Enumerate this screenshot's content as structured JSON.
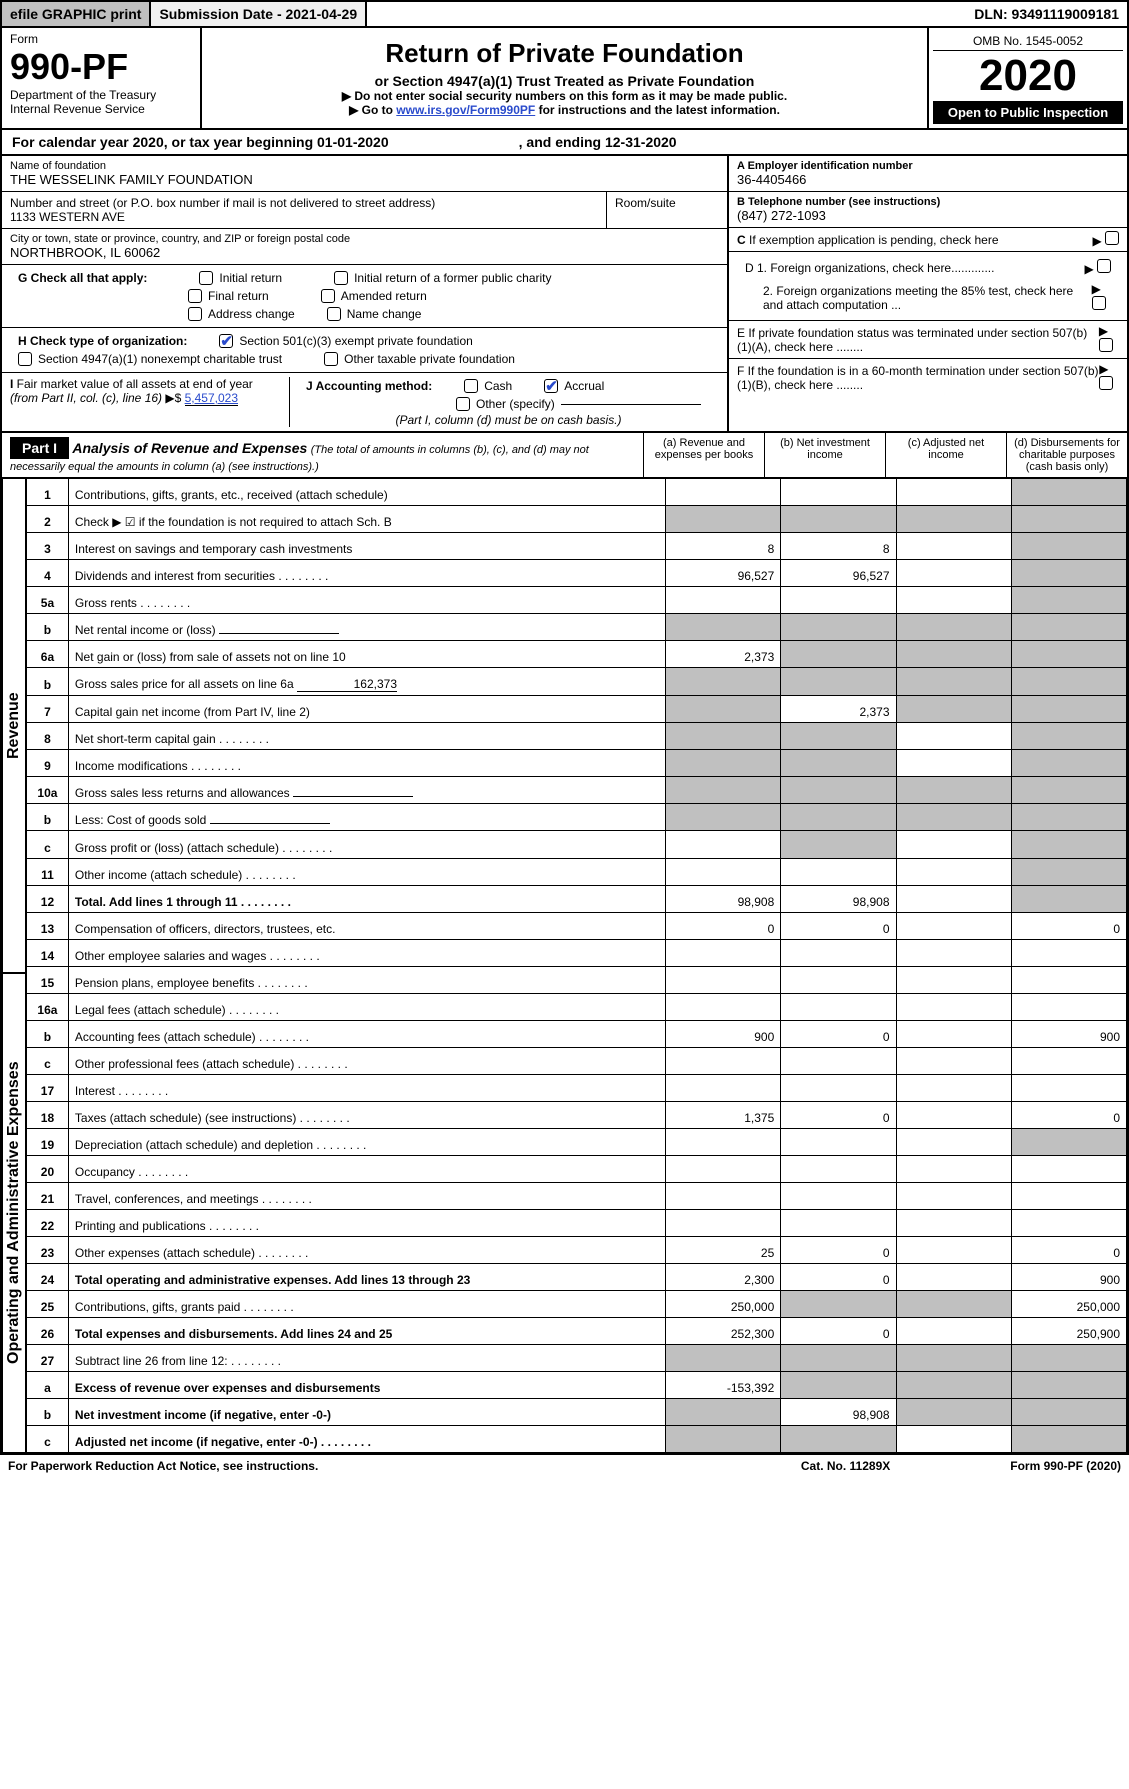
{
  "topbar": {
    "efile": "efile GRAPHIC print",
    "subdate": "Submission Date - 2021-04-29",
    "dln": "DLN: 93491119009181"
  },
  "header": {
    "form_label": "Form",
    "form_no": "990-PF",
    "dept": "Department of the Treasury",
    "irs": "Internal Revenue Service",
    "title": "Return of Private Foundation",
    "subtitle": "or Section 4947(a)(1) Trust Treated as Private Foundation",
    "note1": "▶ Do not enter social security numbers on this form as it may be made public.",
    "note2": "▶ Go to ",
    "link": "www.irs.gov/Form990PF",
    "note3": " for instructions and the latest information.",
    "omb": "OMB No. 1545-0052",
    "year": "2020",
    "open": "Open to Public Inspection"
  },
  "cy": {
    "text": "For calendar year 2020, or tax year beginning 01-01-2020",
    "ending": ", and ending 12-31-2020"
  },
  "info": {
    "name_lbl": "Name of foundation",
    "name": "THE WESSELINK FAMILY FOUNDATION",
    "addr_lbl": "Number and street (or P.O. box number if mail is not delivered to street address)",
    "addr": "1133 WESTERN AVE",
    "room_lbl": "Room/suite",
    "city_lbl": "City or town, state or province, country, and ZIP or foreign postal code",
    "city": "NORTHBROOK, IL  60062",
    "ein_lbl": "A Employer identification number",
    "ein": "36-4405466",
    "tel_lbl": "B Telephone number (see instructions)",
    "tel": "(847) 272-1093",
    "c_lbl": "C If exemption application is pending, check here",
    "g_lbl": "G Check all that apply:",
    "g1": "Initial return",
    "g2": "Initial return of a former public charity",
    "g3": "Final return",
    "g4": "Amended return",
    "g5": "Address change",
    "g6": "Name change",
    "h_lbl": "H Check type of organization:",
    "h1": "Section 501(c)(3) exempt private foundation",
    "h2": "Section 4947(a)(1) nonexempt charitable trust",
    "h3": "Other taxable private foundation",
    "i_lbl": "I Fair market value of all assets at end of year (from Part II, col. (c), line 16) ▶$ ",
    "i_val": "5,457,023",
    "j_lbl": "J Accounting method:",
    "j1": "Cash",
    "j2": "Accrual",
    "j3": "Other (specify)",
    "j_note": "(Part I, column (d) must be on cash basis.)",
    "d1": "D 1. Foreign organizations, check here.............",
    "d2": "2. Foreign organizations meeting the 85% test, check here and attach computation ...",
    "e_lbl": "E  If private foundation status was terminated under section 507(b)(1)(A), check here ........",
    "f_lbl": "F  If the foundation is in a 60-month termination under section 507(b)(1)(B), check here ........"
  },
  "part1": {
    "title": "Part I",
    "heading": "Analysis of Revenue and Expenses",
    "note": " (The total of amounts in columns (b), (c), and (d) may not necessarily equal the amounts in column (a) (see instructions).)",
    "cols": {
      "a": "(a)   Revenue and expenses per books",
      "b": "(b)   Net investment income",
      "c": "(c)   Adjusted net income",
      "d": "(d)   Disbursements for charitable purposes (cash basis only)"
    },
    "vlabels": {
      "rev": "Revenue",
      "exp": "Operating and Administrative Expenses"
    },
    "rows": [
      {
        "ln": "1",
        "desc": "Contributions, gifts, grants, etc., received (attach schedule)",
        "a": "",
        "b": "",
        "c": "",
        "d": "",
        "dgray": true
      },
      {
        "ln": "2",
        "desc": "Check ▶ ☑ if the foundation is not required to attach Sch. B",
        "wide": true
      },
      {
        "ln": "3",
        "desc": "Interest on savings and temporary cash investments",
        "a": "8",
        "b": "8",
        "c": "",
        "d": "",
        "dgray": true
      },
      {
        "ln": "4",
        "desc": "Dividends and interest from securities",
        "a": "96,527",
        "b": "96,527",
        "c": "",
        "d": "",
        "dgray": true
      },
      {
        "ln": "5a",
        "desc": "Gross rents",
        "a": "",
        "b": "",
        "c": "",
        "d": "",
        "dgray": true
      },
      {
        "ln": "b",
        "desc": "Net rental income or (loss)",
        "wide": true,
        "hasblank": true
      },
      {
        "ln": "6a",
        "desc": "Net gain or (loss) from sale of assets not on line 10",
        "a": "2,373",
        "b": "",
        "c": "",
        "d": "",
        "bgray": true,
        "cgray": true,
        "dgray": true
      },
      {
        "ln": "b",
        "desc": "Gross sales price for all assets on line 6a",
        "wide": true,
        "blankval": "162,373"
      },
      {
        "ln": "7",
        "desc": "Capital gain net income (from Part IV, line 2)",
        "a": "",
        "b": "2,373",
        "c": "",
        "d": "",
        "agray": true,
        "cgray": true,
        "dgray": true
      },
      {
        "ln": "8",
        "desc": "Net short-term capital gain",
        "a": "",
        "b": "",
        "c": "",
        "d": "",
        "agray": true,
        "bgray": true,
        "dgray": true
      },
      {
        "ln": "9",
        "desc": "Income modifications",
        "a": "",
        "b": "",
        "c": "",
        "d": "",
        "agray": true,
        "bgray": true,
        "dgray": true
      },
      {
        "ln": "10a",
        "desc": "Gross sales less returns and allowances",
        "wide": true,
        "hasblank": true
      },
      {
        "ln": "b",
        "desc": "Less: Cost of goods sold",
        "wide": true,
        "hasblank": true
      },
      {
        "ln": "c",
        "desc": "Gross profit or (loss) (attach schedule)",
        "a": "",
        "b": "",
        "c": "",
        "d": "",
        "bgray": true,
        "dgray": true
      },
      {
        "ln": "11",
        "desc": "Other income (attach schedule)",
        "a": "",
        "b": "",
        "c": "",
        "d": "",
        "dgray": true
      },
      {
        "ln": "12",
        "desc": "Total. Add lines 1 through 11",
        "bold": true,
        "a": "98,908",
        "b": "98,908",
        "c": "",
        "d": "",
        "dgray": true
      },
      {
        "ln": "13",
        "desc": "Compensation of officers, directors, trustees, etc.",
        "a": "0",
        "b": "0",
        "c": "",
        "d": "0",
        "section": "exp"
      },
      {
        "ln": "14",
        "desc": "Other employee salaries and wages",
        "a": "",
        "b": "",
        "c": "",
        "d": ""
      },
      {
        "ln": "15",
        "desc": "Pension plans, employee benefits",
        "a": "",
        "b": "",
        "c": "",
        "d": ""
      },
      {
        "ln": "16a",
        "desc": "Legal fees (attach schedule)",
        "a": "",
        "b": "",
        "c": "",
        "d": ""
      },
      {
        "ln": "b",
        "desc": "Accounting fees (attach schedule)",
        "a": "900",
        "b": "0",
        "c": "",
        "d": "900"
      },
      {
        "ln": "c",
        "desc": "Other professional fees (attach schedule)",
        "a": "",
        "b": "",
        "c": "",
        "d": ""
      },
      {
        "ln": "17",
        "desc": "Interest",
        "a": "",
        "b": "",
        "c": "",
        "d": ""
      },
      {
        "ln": "18",
        "desc": "Taxes (attach schedule) (see instructions)",
        "a": "1,375",
        "b": "0",
        "c": "",
        "d": "0"
      },
      {
        "ln": "19",
        "desc": "Depreciation (attach schedule) and depletion",
        "a": "",
        "b": "",
        "c": "",
        "d": "",
        "dgray": true
      },
      {
        "ln": "20",
        "desc": "Occupancy",
        "a": "",
        "b": "",
        "c": "",
        "d": ""
      },
      {
        "ln": "21",
        "desc": "Travel, conferences, and meetings",
        "a": "",
        "b": "",
        "c": "",
        "d": ""
      },
      {
        "ln": "22",
        "desc": "Printing and publications",
        "a": "",
        "b": "",
        "c": "",
        "d": ""
      },
      {
        "ln": "23",
        "desc": "Other expenses (attach schedule)",
        "a": "25",
        "b": "0",
        "c": "",
        "d": "0"
      },
      {
        "ln": "24",
        "desc": "Total operating and administrative expenses. Add lines 13 through 23",
        "bold": true,
        "a": "2,300",
        "b": "0",
        "c": "",
        "d": "900"
      },
      {
        "ln": "25",
        "desc": "Contributions, gifts, grants paid",
        "a": "250,000",
        "b": "",
        "c": "",
        "d": "250,000",
        "bgray": true,
        "cgray": true
      },
      {
        "ln": "26",
        "desc": "Total expenses and disbursements. Add lines 24 and 25",
        "bold": true,
        "a": "252,300",
        "b": "0",
        "c": "",
        "d": "250,900"
      },
      {
        "ln": "27",
        "desc": "Subtract line 26 from line 12:",
        "a": "",
        "b": "",
        "c": "",
        "d": "",
        "agray": true,
        "bgray": true,
        "cgray": true,
        "dgray": true
      },
      {
        "ln": "a",
        "desc": "Excess of revenue over expenses and disbursements",
        "bold": true,
        "a": "-153,392",
        "b": "",
        "c": "",
        "d": "",
        "bgray": true,
        "cgray": true,
        "dgray": true
      },
      {
        "ln": "b",
        "desc": "Net investment income (if negative, enter -0-)",
        "bold": true,
        "a": "",
        "b": "98,908",
        "c": "",
        "d": "",
        "agray": true,
        "cgray": true,
        "dgray": true
      },
      {
        "ln": "c",
        "desc": "Adjusted net income (if negative, enter -0-)",
        "bold": true,
        "a": "",
        "b": "",
        "c": "",
        "d": "",
        "agray": true,
        "bgray": true,
        "dgray": true
      }
    ]
  },
  "footer": {
    "left": "For Paperwork Reduction Act Notice, see instructions.",
    "mid": "Cat. No. 11289X",
    "right": "Form 990-PF (2020)"
  }
}
